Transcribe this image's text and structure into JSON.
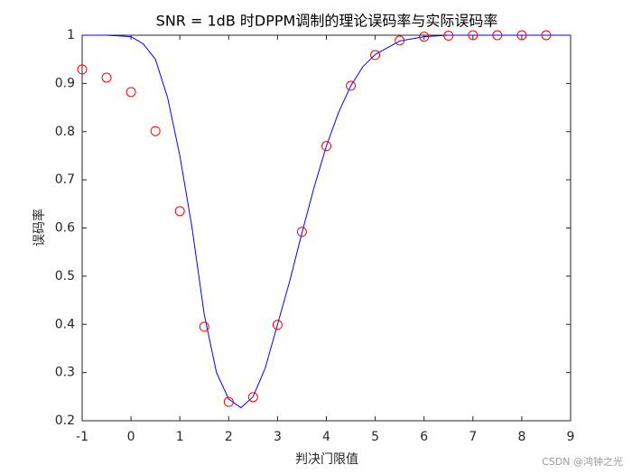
{
  "chart_data": {
    "type": "line",
    "title": "SNR = 1dB 时DPPM调制的理论误码率与实际误码率",
    "xlabel": "判决门限值",
    "ylabel": "误码率",
    "xlim": [
      -1,
      9
    ],
    "ylim": [
      0.2,
      1
    ],
    "xticks": [
      -1,
      0,
      1,
      2,
      3,
      4,
      5,
      6,
      7,
      8,
      9
    ],
    "yticks": [
      0.2,
      0.3,
      0.4,
      0.5,
      0.6,
      0.7,
      0.8,
      0.9,
      1
    ],
    "series": [
      {
        "style": "line",
        "color": "#0000ff",
        "x": [
          -1,
          -0.5,
          0,
          0.25,
          0.5,
          0.75,
          1,
          1.25,
          1.5,
          1.75,
          2,
          2.25,
          2.5,
          2.75,
          3,
          3.25,
          3.5,
          3.75,
          4,
          4.25,
          4.5,
          4.75,
          5,
          5.5,
          6,
          6.5,
          7,
          8,
          9
        ],
        "values": [
          1,
          1,
          0.997,
          0.982,
          0.95,
          0.87,
          0.75,
          0.6,
          0.42,
          0.3,
          0.245,
          0.227,
          0.25,
          0.31,
          0.4,
          0.49,
          0.59,
          0.685,
          0.77,
          0.84,
          0.895,
          0.935,
          0.96,
          0.988,
          0.997,
          1,
          1,
          1,
          1
        ]
      },
      {
        "style": "markers",
        "color": "#ff0000",
        "x": [
          -1,
          -0.5,
          0,
          0.5,
          1,
          1.5,
          2,
          2.5,
          3,
          3.5,
          4,
          4.5,
          5,
          5.5,
          6,
          6.5,
          7,
          7.5,
          8,
          8.5
        ],
        "values": [
          0.929,
          0.912,
          0.882,
          0.801,
          0.635,
          0.395,
          0.239,
          0.249,
          0.399,
          0.592,
          0.77,
          0.895,
          0.959,
          0.989,
          0.997,
          0.999,
          1,
          1,
          1,
          1
        ]
      }
    ],
    "watermark": "CSDN @鸿钟之光"
  }
}
